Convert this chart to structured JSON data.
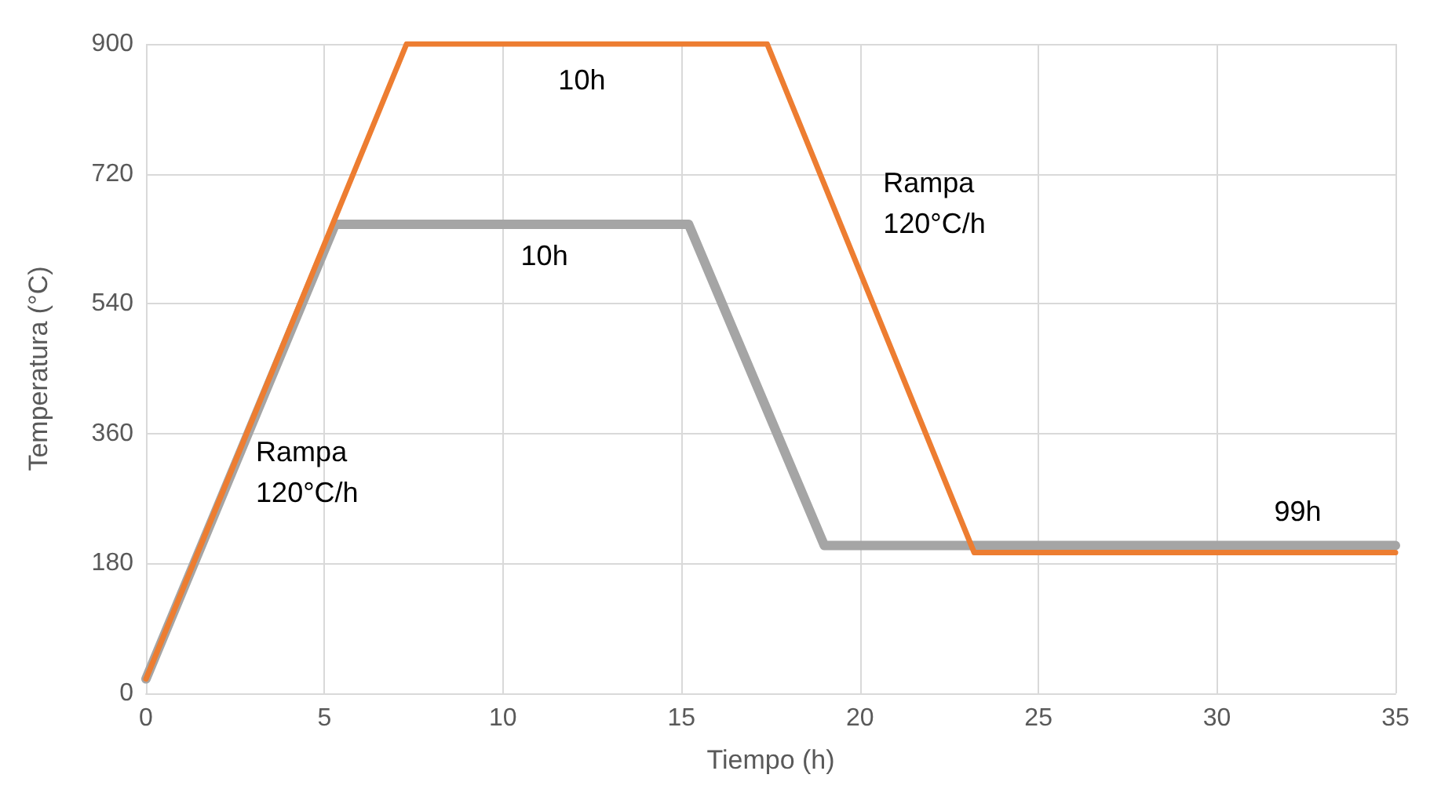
{
  "chart_data": {
    "type": "line",
    "xlabel": "Tiempo (h)",
    "ylabel": "Temperatura (°C)",
    "xlim": [
      0,
      35
    ],
    "xticks": [
      0,
      5,
      10,
      15,
      20,
      25,
      30,
      35
    ],
    "ylim": [
      0,
      900
    ],
    "yticks": [
      0,
      180,
      360,
      540,
      720,
      900
    ],
    "grid": true,
    "marker": "none",
    "line_style": "solid",
    "series": [
      {
        "color": "#a5a5a5",
        "x": [
          0,
          5.3,
          15.2,
          19.0,
          35
        ],
        "values": [
          20,
          650,
          650,
          205,
          205
        ]
      },
      {
        "color": "#ed7d31",
        "x": [
          0,
          7.3,
          17.4,
          23.2,
          35
        ],
        "values": [
          20,
          900,
          900,
          195,
          195
        ]
      }
    ],
    "annotations": [
      "10h",
      "10h",
      "Rampa\n120°C/h",
      "Rampa\n120°C/h",
      "99h"
    ]
  }
}
